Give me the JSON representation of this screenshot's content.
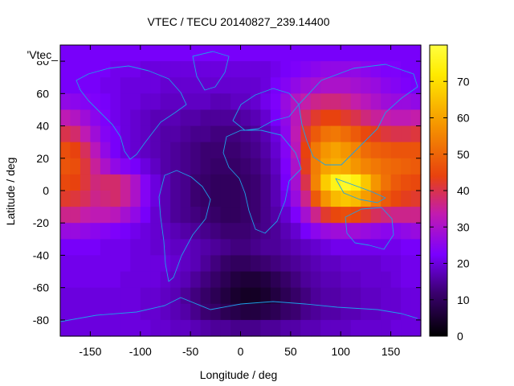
{
  "chart_data": {
    "type": "heatmap",
    "title": "VTEC / TECU 20140827_239.14400",
    "xlabel": "Longitude / deg",
    "ylabel": "Latitude / deg",
    "key_label": "'Vtec_",
    "xlim": [
      -180,
      180
    ],
    "ylim": [
      -90,
      90
    ],
    "xticks": [
      -150,
      -100,
      -50,
      0,
      50,
      100,
      150
    ],
    "yticks": [
      -80,
      -60,
      -40,
      -20,
      0,
      20,
      40,
      60,
      80
    ],
    "colorbar": {
      "min": 0,
      "max": 80,
      "ticks": [
        0,
        10,
        20,
        30,
        40,
        50,
        60,
        70
      ]
    },
    "palette": [
      "#000000",
      "#3b0070",
      "#7a00ff",
      "#c21bb0",
      "#e8420e",
      "#f59300",
      "#ffeb00",
      "#ffff40"
    ],
    "coastline_color": "#1ea0e8",
    "grid": {
      "lon": [
        -175,
        -165,
        -155,
        -145,
        -135,
        -125,
        -115,
        -105,
        -95,
        -85,
        -75,
        -65,
        -55,
        -45,
        -35,
        -25,
        -15,
        -5,
        5,
        15,
        25,
        35,
        45,
        55,
        65,
        75,
        85,
        95,
        105,
        115,
        125,
        135,
        145,
        155,
        165,
        175
      ],
      "lat": [
        85,
        75,
        65,
        55,
        45,
        35,
        25,
        15,
        5,
        -5,
        -15,
        -25,
        -35,
        -45,
        -55,
        -65,
        -75,
        -85
      ],
      "values": [
        [
          22,
          22,
          22,
          22,
          22,
          22,
          22,
          22,
          22,
          22,
          22,
          22,
          22,
          22,
          22,
          22,
          22,
          22,
          22,
          22,
          22,
          22,
          22,
          22,
          22,
          22,
          22,
          22,
          22,
          22,
          22,
          22,
          22,
          22,
          22,
          22
        ],
        [
          22,
          22,
          22,
          22,
          22,
          21,
          21,
          21,
          20,
          20,
          20,
          20,
          20,
          20,
          20,
          20,
          20,
          20,
          20,
          20,
          20,
          21,
          22,
          23,
          24,
          25,
          26,
          26,
          26,
          26,
          25,
          24,
          23,
          23,
          22,
          22
        ],
        [
          22,
          22,
          22,
          22,
          21,
          21,
          20,
          20,
          20,
          20,
          19,
          19,
          19,
          19,
          19,
          19,
          19,
          19,
          19,
          19,
          20,
          22,
          24,
          26,
          28,
          29,
          30,
          30,
          30,
          29,
          28,
          27,
          25,
          24,
          23,
          22
        ],
        [
          26,
          25,
          24,
          23,
          22,
          21,
          20,
          20,
          19,
          19,
          18,
          18,
          18,
          18,
          18,
          17,
          17,
          18,
          18,
          19,
          21,
          23,
          27,
          31,
          34,
          36,
          37,
          37,
          36,
          34,
          32,
          30,
          28,
          27,
          27,
          26
        ],
        [
          33,
          31,
          28,
          25,
          23,
          21,
          20,
          19,
          18,
          17,
          17,
          17,
          16,
          16,
          15,
          15,
          15,
          15,
          16,
          17,
          19,
          22,
          26,
          32,
          38,
          42,
          44,
          44,
          42,
          40,
          37,
          35,
          34,
          33,
          33,
          34
        ],
        [
          40,
          38,
          33,
          28,
          24,
          22,
          20,
          19,
          18,
          17,
          16,
          16,
          15,
          14,
          14,
          13,
          13,
          13,
          14,
          15,
          17,
          20,
          25,
          33,
          42,
          48,
          52,
          53,
          51,
          48,
          45,
          43,
          41,
          40,
          40,
          41
        ],
        [
          46,
          44,
          39,
          32,
          26,
          22,
          20,
          19,
          18,
          17,
          16,
          15,
          14,
          13,
          12,
          12,
          12,
          12,
          13,
          14,
          16,
          19,
          24,
          32,
          44,
          53,
          58,
          60,
          58,
          55,
          51,
          49,
          48,
          47,
          47,
          47
        ],
        [
          47,
          46,
          41,
          35,
          30,
          26,
          24,
          22,
          20,
          18,
          16,
          15,
          14,
          13,
          12,
          11,
          11,
          11,
          12,
          13,
          15,
          18,
          23,
          30,
          43,
          54,
          60,
          62,
          61,
          58,
          55,
          53,
          51,
          50,
          49,
          48
        ],
        [
          45,
          44,
          41,
          37,
          38,
          38,
          35,
          30,
          24,
          20,
          17,
          15,
          14,
          12,
          11,
          10,
          10,
          10,
          11,
          12,
          14,
          17,
          22,
          29,
          40,
          55,
          67,
          75,
          77,
          74,
          66,
          58,
          52,
          48,
          46,
          45
        ],
        [
          42,
          41,
          39,
          36,
          37,
          38,
          35,
          30,
          24,
          20,
          17,
          15,
          14,
          12,
          11,
          10,
          10,
          10,
          11,
          12,
          14,
          17,
          21,
          27,
          36,
          48,
          58,
          64,
          66,
          64,
          59,
          53,
          48,
          45,
          43,
          42
        ],
        [
          36,
          36,
          34,
          33,
          33,
          32,
          29,
          26,
          22,
          19,
          17,
          15,
          14,
          13,
          12,
          11,
          10,
          10,
          11,
          12,
          14,
          16,
          19,
          23,
          29,
          36,
          42,
          45,
          46,
          45,
          42,
          39,
          37,
          36,
          36,
          36
        ],
        [
          27,
          27,
          26,
          25,
          24,
          23,
          22,
          21,
          20,
          19,
          18,
          17,
          16,
          15,
          14,
          13,
          12,
          12,
          12,
          13,
          14,
          15,
          17,
          19,
          22,
          25,
          27,
          28,
          28,
          28,
          27,
          26,
          25,
          25,
          26,
          27
        ],
        [
          22,
          22,
          22,
          22,
          21,
          21,
          21,
          20,
          20,
          19,
          19,
          18,
          18,
          17,
          16,
          15,
          14,
          13,
          13,
          14,
          15,
          15,
          16,
          17,
          18,
          19,
          20,
          21,
          21,
          21,
          21,
          21,
          21,
          21,
          22,
          22
        ],
        [
          21,
          21,
          21,
          21,
          21,
          21,
          21,
          20,
          20,
          20,
          20,
          19,
          18,
          17,
          15,
          13,
          11,
          10,
          10,
          11,
          12,
          13,
          14,
          15,
          16,
          17,
          18,
          18,
          19,
          19,
          19,
          19,
          20,
          20,
          21,
          21
        ],
        [
          21,
          21,
          21,
          21,
          21,
          21,
          20,
          20,
          20,
          20,
          19,
          18,
          17,
          15,
          13,
          11,
          9,
          7,
          6,
          6,
          7,
          9,
          11,
          13,
          15,
          16,
          17,
          17,
          18,
          18,
          19,
          19,
          19,
          20,
          21,
          21
        ],
        [
          20,
          20,
          20,
          20,
          20,
          20,
          20,
          20,
          19,
          19,
          18,
          17,
          15,
          13,
          11,
          9,
          7,
          5,
          4,
          4,
          5,
          7,
          9,
          11,
          13,
          15,
          16,
          16,
          17,
          17,
          18,
          18,
          19,
          19,
          20,
          20
        ],
        [
          20,
          20,
          20,
          20,
          20,
          20,
          20,
          20,
          19,
          19,
          18,
          17,
          16,
          14,
          12,
          11,
          9,
          8,
          7,
          7,
          8,
          9,
          11,
          12,
          14,
          15,
          16,
          16,
          17,
          17,
          18,
          18,
          19,
          19,
          20,
          20
        ],
        [
          20,
          20,
          20,
          20,
          20,
          20,
          20,
          20,
          20,
          19,
          19,
          18,
          18,
          17,
          16,
          15,
          15,
          14,
          14,
          14,
          15,
          15,
          16,
          16,
          17,
          17,
          18,
          18,
          18,
          19,
          19,
          19,
          19,
          20,
          20,
          20
        ]
      ]
    }
  }
}
